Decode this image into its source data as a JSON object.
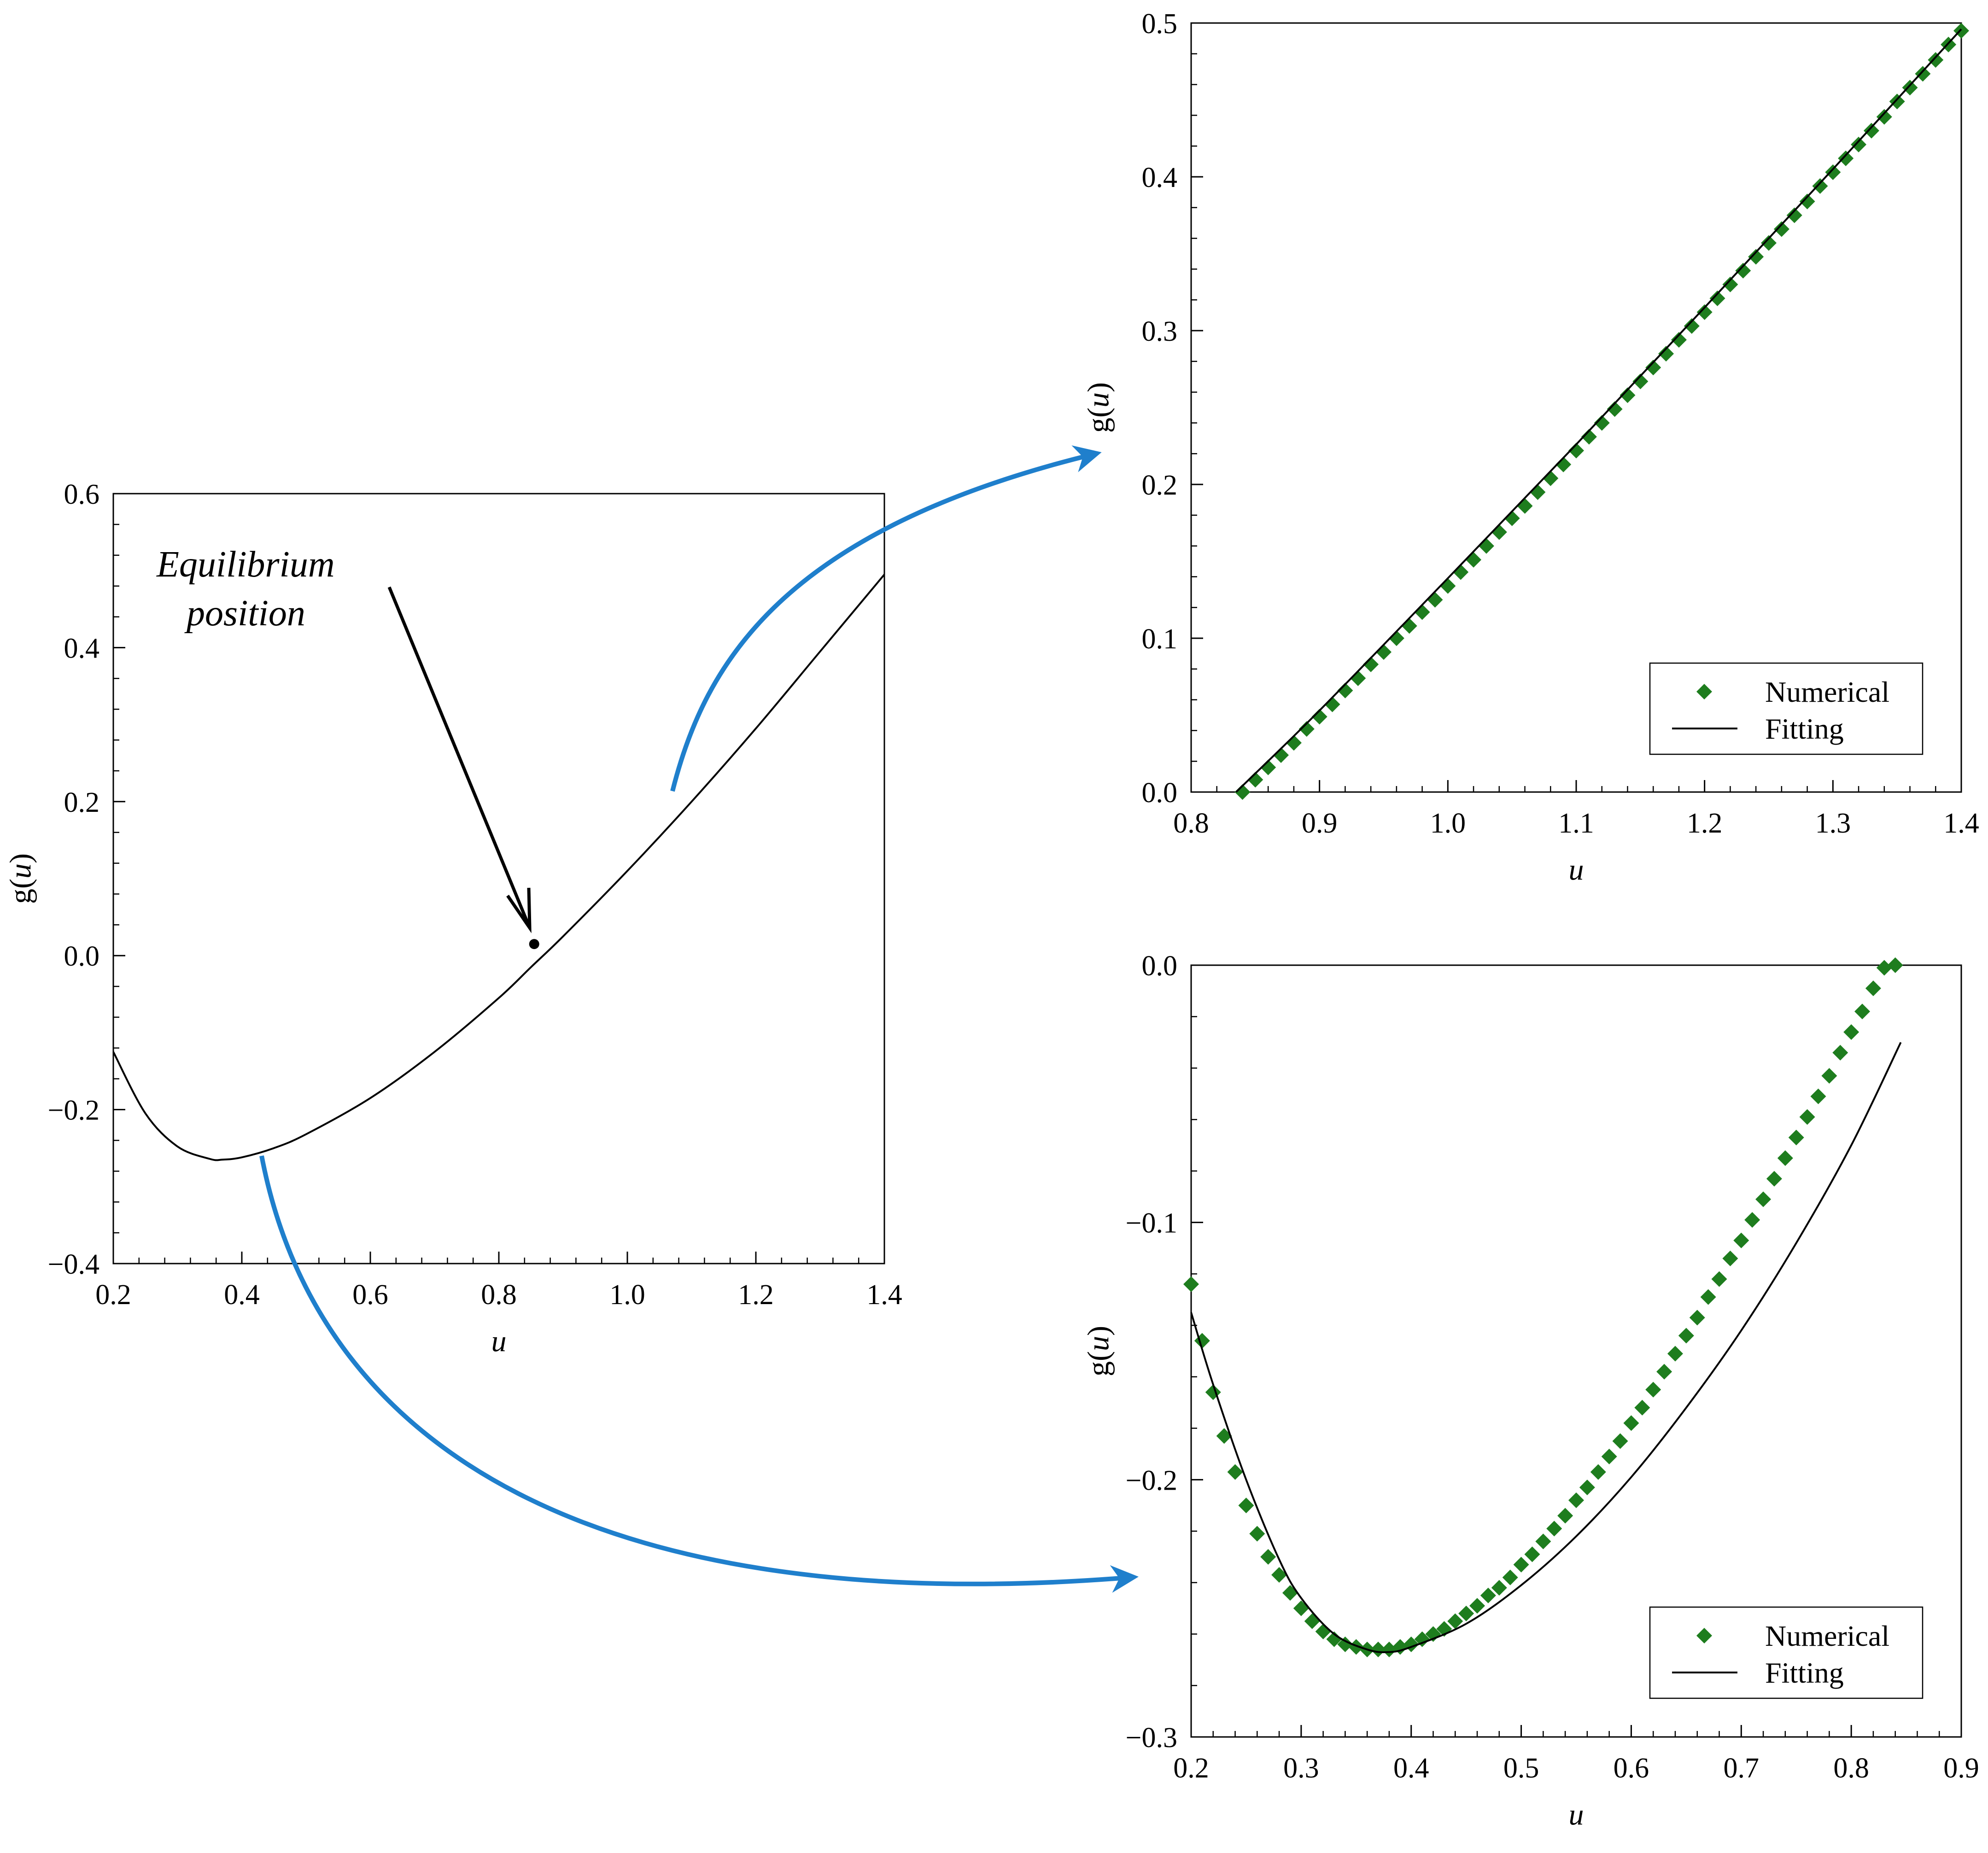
{
  "colors": {
    "curve": "#000000",
    "numerical": "#1e7d1e",
    "arrow": "#1f7fcc",
    "axes": "#000000"
  },
  "annotation": {
    "line1": "Equilibrium",
    "line2": "position"
  },
  "chart_data": [
    {
      "id": "main",
      "type": "line",
      "xlabel": "u",
      "ylabel_fn": "g(",
      "ylabel_var": "u",
      "ylabel_close": ")",
      "xlim": [
        0.2,
        1.4
      ],
      "ylim": [
        -0.4,
        0.6
      ],
      "xticks": [
        0.2,
        0.4,
        0.6,
        0.8,
        1.0,
        1.2,
        1.4
      ],
      "xtick_labels": [
        "0.2",
        "0.4",
        "0.6",
        "0.8",
        "1.0",
        "1.2",
        "1.4"
      ],
      "yticks": [
        -0.4,
        -0.2,
        0.0,
        0.2,
        0.4,
        0.6
      ],
      "ytick_labels": [
        "−0.4",
        "−0.2",
        "0.0",
        "0.2",
        "0.4",
        "0.6"
      ],
      "grid": false,
      "series": [
        {
          "style": "line",
          "x": [
            0.2,
            0.25,
            0.3,
            0.35,
            0.37,
            0.4,
            0.45,
            0.5,
            0.6,
            0.7,
            0.8,
            0.85,
            0.9,
            1.0,
            1.1,
            1.2,
            1.3,
            1.4
          ],
          "y": [
            -0.125,
            -0.205,
            -0.248,
            -0.264,
            -0.265,
            -0.262,
            -0.25,
            -0.232,
            -0.185,
            -0.125,
            -0.055,
            -0.015,
            0.025,
            0.11,
            0.2,
            0.295,
            0.395,
            0.495
          ]
        }
      ],
      "marker_point": {
        "x": 0.855,
        "y": 0.015
      }
    },
    {
      "id": "top-right",
      "type": "scatter",
      "xlabel": "u",
      "ylabel_fn": "g(",
      "ylabel_var": "u",
      "ylabel_close": ")",
      "xlim": [
        0.8,
        1.4
      ],
      "ylim": [
        0.0,
        0.5
      ],
      "xticks": [
        0.8,
        0.9,
        1.0,
        1.1,
        1.2,
        1.3,
        1.4
      ],
      "xtick_labels": [
        "0.8",
        "0.9",
        "1.0",
        "1.1",
        "1.2",
        "1.3",
        "1.4"
      ],
      "yticks": [
        0.0,
        0.1,
        0.2,
        0.3,
        0.4,
        0.5
      ],
      "ytick_labels": [
        "0.0",
        "0.1",
        "0.2",
        "0.3",
        "0.4",
        "0.5"
      ],
      "grid": false,
      "legend": {
        "position": "bottom-right",
        "entries": [
          "Numerical",
          "Fitting"
        ]
      },
      "series": [
        {
          "name": "Numerical",
          "style": "diamond",
          "x": [
            0.84,
            0.85,
            0.86,
            0.87,
            0.88,
            0.89,
            0.9,
            0.91,
            0.92,
            0.93,
            0.94,
            0.95,
            0.96,
            0.97,
            0.98,
            0.99,
            1.0,
            1.01,
            1.02,
            1.03,
            1.04,
            1.05,
            1.06,
            1.07,
            1.08,
            1.09,
            1.1,
            1.11,
            1.12,
            1.13,
            1.14,
            1.15,
            1.16,
            1.17,
            1.18,
            1.19,
            1.2,
            1.21,
            1.22,
            1.23,
            1.24,
            1.25,
            1.26,
            1.27,
            1.28,
            1.29,
            1.3,
            1.31,
            1.32,
            1.33,
            1.34,
            1.35,
            1.36,
            1.37,
            1.38,
            1.39,
            1.4
          ],
          "y": [
            0.0,
            0.008,
            0.016,
            0.024,
            0.032,
            0.041,
            0.049,
            0.057,
            0.066,
            0.074,
            0.083,
            0.091,
            0.1,
            0.108,
            0.117,
            0.125,
            0.134,
            0.143,
            0.151,
            0.16,
            0.169,
            0.178,
            0.186,
            0.195,
            0.204,
            0.213,
            0.222,
            0.231,
            0.24,
            0.249,
            0.258,
            0.267,
            0.276,
            0.285,
            0.294,
            0.303,
            0.312,
            0.321,
            0.33,
            0.339,
            0.348,
            0.357,
            0.366,
            0.375,
            0.384,
            0.394,
            0.403,
            0.412,
            0.421,
            0.43,
            0.439,
            0.449,
            0.458,
            0.467,
            0.476,
            0.486,
            0.495
          ]
        },
        {
          "name": "Fitting",
          "style": "line",
          "x": [
            0.835,
            0.9,
            1.0,
            1.1,
            1.2,
            1.3,
            1.4
          ],
          "y": [
            0.0,
            0.053,
            0.139,
            0.226,
            0.315,
            0.405,
            0.496
          ]
        }
      ]
    },
    {
      "id": "bottom-right",
      "type": "scatter",
      "xlabel": "u",
      "ylabel_fn": "g(",
      "ylabel_var": "u",
      "ylabel_close": ")",
      "xlim": [
        0.2,
        0.9
      ],
      "ylim": [
        -0.3,
        0.0
      ],
      "xticks": [
        0.2,
        0.3,
        0.4,
        0.5,
        0.6,
        0.7,
        0.8,
        0.9
      ],
      "xtick_labels": [
        "0.2",
        "0.3",
        "0.4",
        "0.5",
        "0.6",
        "0.7",
        "0.8",
        "0.9"
      ],
      "yticks": [
        -0.3,
        -0.2,
        -0.1,
        0.0
      ],
      "ytick_labels": [
        "−0.3",
        "−0.2",
        "−0.1",
        "0.0"
      ],
      "grid": false,
      "legend": {
        "position": "bottom-right",
        "entries": [
          "Numerical",
          "Fitting"
        ]
      },
      "series": [
        {
          "name": "Numerical",
          "style": "diamond",
          "x": [
            0.2,
            0.21,
            0.22,
            0.23,
            0.24,
            0.25,
            0.26,
            0.27,
            0.28,
            0.29,
            0.3,
            0.31,
            0.32,
            0.33,
            0.34,
            0.35,
            0.36,
            0.37,
            0.38,
            0.39,
            0.4,
            0.41,
            0.42,
            0.43,
            0.44,
            0.45,
            0.46,
            0.47,
            0.48,
            0.49,
            0.5,
            0.51,
            0.52,
            0.53,
            0.54,
            0.55,
            0.56,
            0.57,
            0.58,
            0.59,
            0.6,
            0.61,
            0.62,
            0.63,
            0.64,
            0.65,
            0.66,
            0.67,
            0.68,
            0.69,
            0.7,
            0.71,
            0.72,
            0.73,
            0.74,
            0.75,
            0.76,
            0.77,
            0.78,
            0.79,
            0.8,
            0.81,
            0.82,
            0.83,
            0.84
          ],
          "y": [
            -0.124,
            -0.146,
            -0.166,
            -0.183,
            -0.197,
            -0.21,
            -0.221,
            -0.23,
            -0.237,
            -0.244,
            -0.25,
            -0.255,
            -0.259,
            -0.262,
            -0.264,
            -0.265,
            -0.266,
            -0.266,
            -0.266,
            -0.265,
            -0.264,
            -0.262,
            -0.26,
            -0.258,
            -0.255,
            -0.252,
            -0.249,
            -0.245,
            -0.242,
            -0.238,
            -0.233,
            -0.229,
            -0.224,
            -0.219,
            -0.214,
            -0.208,
            -0.203,
            -0.197,
            -0.191,
            -0.185,
            -0.178,
            -0.172,
            -0.165,
            -0.158,
            -0.151,
            -0.144,
            -0.137,
            -0.129,
            -0.122,
            -0.114,
            -0.107,
            -0.099,
            -0.091,
            -0.083,
            -0.075,
            -0.067,
            -0.059,
            -0.051,
            -0.043,
            -0.034,
            -0.026,
            -0.018,
            -0.009,
            -0.001,
            0.0
          ]
        },
        {
          "name": "Fitting",
          "style": "line",
          "x": [
            0.2,
            0.22,
            0.25,
            0.28,
            0.3,
            0.33,
            0.36,
            0.38,
            0.4,
            0.45,
            0.5,
            0.55,
            0.6,
            0.65,
            0.7,
            0.75,
            0.8,
            0.845
          ],
          "y": [
            -0.135,
            -0.163,
            -0.2,
            -0.231,
            -0.246,
            -0.26,
            -0.266,
            -0.267,
            -0.265,
            -0.256,
            -0.241,
            -0.222,
            -0.199,
            -0.172,
            -0.142,
            -0.108,
            -0.07,
            -0.03
          ]
        }
      ]
    }
  ]
}
